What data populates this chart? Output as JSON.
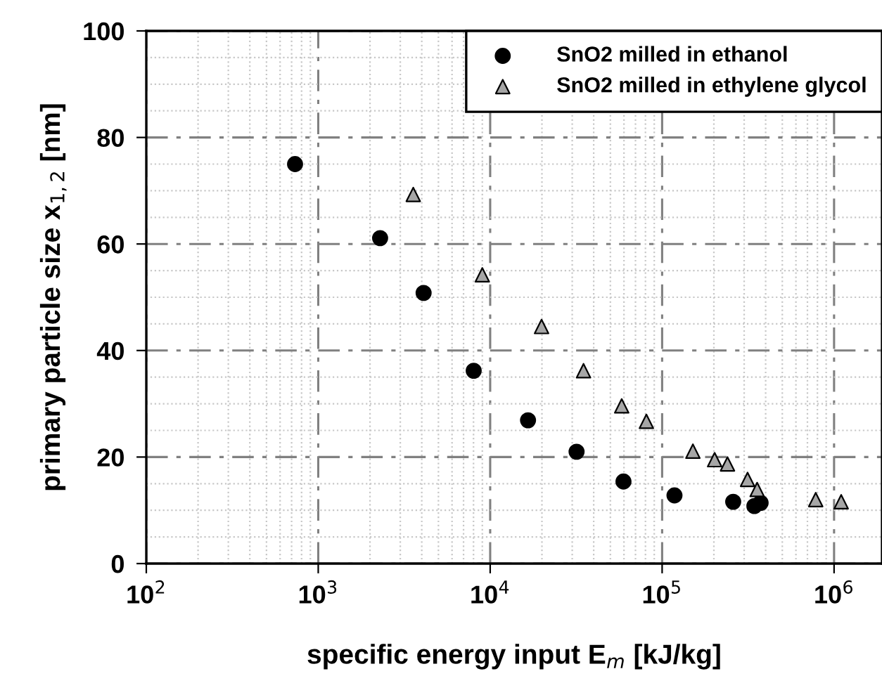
{
  "chart_data": {
    "type": "scatter",
    "xlabel": "specific energy input E$_{m}$ [kJ/kg]",
    "ylabel": "primary particle size x$_{1,2}$ [nm]",
    "log": "x",
    "xlim": [
      100,
      1900000
    ],
    "xticks": [
      {
        "value": 100,
        "label": "10$^{2}$"
      },
      {
        "value": 1000,
        "label": "10$^{3}$"
      },
      {
        "value": 10000,
        "label": "10$^{4}$"
      },
      {
        "value": 100000,
        "label": "10$^{5}$"
      },
      {
        "value": 1000000,
        "label": "10$^{6}$"
      }
    ],
    "ylim": [
      0,
      100
    ],
    "yticks": [
      0,
      20,
      40,
      60,
      80,
      100
    ],
    "grid": true,
    "legend": "top right",
    "series": [
      {
        "name": "SnO2 milled in ethanol",
        "color": "#000000",
        "marker": "circle",
        "x": [
          733,
          2290,
          4100,
          8020,
          16600,
          31800,
          59600,
          118000,
          259000,
          344000,
          374000
        ],
        "values": [
          75.0,
          61.1,
          50.8,
          36.2,
          26.9,
          21.0,
          15.4,
          12.8,
          11.6,
          10.8,
          11.4
        ]
      },
      {
        "name": "SnO2 milled in ethylene glycol",
        "color": "#a6a6a6",
        "marker": "triangle",
        "x": [
          3570,
          9000,
          19900,
          34900,
          58200,
          81000,
          151000,
          202000,
          240000,
          314000,
          357000,
          782000,
          1100000
        ],
        "values": [
          69.3,
          54.2,
          44.5,
          36.2,
          29.6,
          26.7,
          21.1,
          19.5,
          18.7,
          15.8,
          13.9,
          12.0,
          11.6
        ]
      }
    ]
  }
}
